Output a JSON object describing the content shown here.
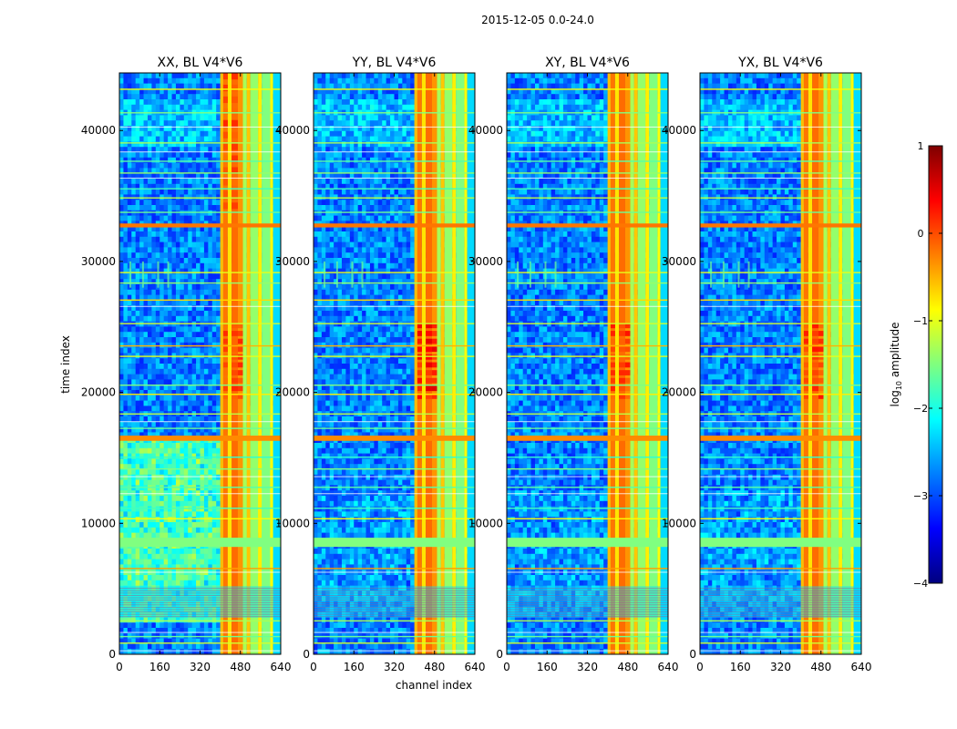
{
  "figure": {
    "suptitle": "2015-12-05 0.0-24.0",
    "xlabel": "channel index",
    "ylabel": "time index"
  },
  "chart_data": {
    "type": "heatmap",
    "x_ticks": [
      0,
      160,
      320,
      480,
      640
    ],
    "y_ticks": [
      0,
      10000,
      20000,
      30000,
      40000
    ],
    "xlim": [
      0,
      640
    ],
    "ylim": [
      0,
      44400
    ],
    "panels": [
      {
        "title": "XX, BL V4*V6",
        "style": "xx"
      },
      {
        "title": "YY, BL V4*V6",
        "style": "yy"
      },
      {
        "title": "XY, BL V4*V6",
        "style": "xy"
      },
      {
        "title": "YX, BL V4*V6",
        "style": "yx"
      }
    ],
    "colorbar": {
      "label": "log10 amplitude",
      "label_prefix": "log",
      "label_sub": "10",
      "label_suffix": " amplitude",
      "min": -4,
      "max": 1,
      "ticks": [
        1,
        0,
        -1,
        -2,
        -3,
        -4
      ],
      "tick_labels": [
        "1",
        "0",
        "−1",
        "−2",
        "−3",
        "−4"
      ],
      "colormap": "jet",
      "colors": [
        "#00007f",
        "#0000ff",
        "#007fff",
        "#00ffff",
        "#7fff7f",
        "#ffff00",
        "#ff7f00",
        "#ff0000",
        "#7f0000"
      ]
    },
    "bright_bands_channels": [
      [
        400,
        430
      ],
      [
        430,
        460
      ],
      [
        460,
        490
      ],
      [
        500,
        520
      ],
      [
        550,
        570
      ],
      [
        600,
        615
      ]
    ],
    "horizontal_features_time": [
      {
        "t0": 8200,
        "t1": 8900,
        "level": -1.5
      },
      {
        "t0": 2800,
        "t1": 5200,
        "level": -2.3
      },
      {
        "t0": 16300,
        "t1": 16700,
        "level": -0.3
      },
      {
        "t0": 32600,
        "t1": 32900,
        "level": -0.2
      }
    ]
  }
}
